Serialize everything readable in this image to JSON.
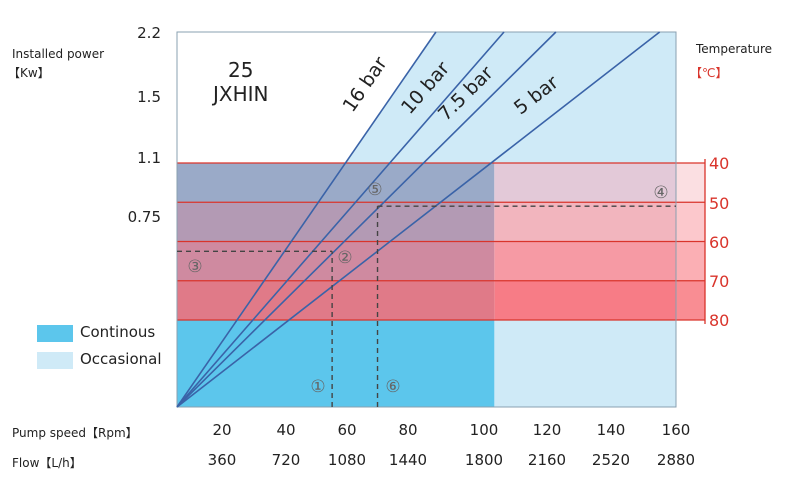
{
  "chart_data": {
    "type": "line",
    "model": [
      "25",
      "JXHIN"
    ],
    "ylabel": [
      "Installed power",
      "【Kw】"
    ],
    "y2label": [
      "Temperature",
      "【℃】"
    ],
    "yticks": [
      "2.2",
      "1.5",
      "1.1",
      "0.75"
    ],
    "y2ticks": [
      "40",
      "50",
      "60",
      "70",
      "80"
    ],
    "xlabel_speed": "Pump speed【Rpm】",
    "xlabel_flow": "Flow【L/h】",
    "speed_ticks": [
      "20",
      "40",
      "60",
      "80",
      "100",
      "120",
      "140",
      "160"
    ],
    "flow_ticks": [
      "360",
      "720",
      "1080",
      "1440",
      "1800",
      "2160",
      "2520",
      "2880"
    ],
    "series": [
      {
        "name": "16 bar",
        "top_speed_rpm": 86
      },
      {
        "name": "10 bar",
        "top_speed_rpm": 107
      },
      {
        "name": "7.5 bar",
        "top_speed_rpm": 123
      },
      {
        "name": "5 bar",
        "top_speed_rpm": 155
      }
    ],
    "continuous_limit_rpm": 104,
    "legend": [
      {
        "label": "Continous",
        "color": "#5cc6ec"
      },
      {
        "label": "Occasional",
        "color": "#cfeaf7"
      }
    ],
    "legend_position": "bottom-left",
    "annotations": [
      "①",
      "②",
      "③",
      "④",
      "⑤",
      "⑥"
    ],
    "example_paths": [
      {
        "speed_rpm": 54,
        "temperature_c": 62.5
      },
      {
        "speed_rpm": 68,
        "temperature_c": 51
      }
    ],
    "colors": {
      "line": "#3a63a8",
      "temp": "#d9342b",
      "band": "#f0707a"
    }
  }
}
